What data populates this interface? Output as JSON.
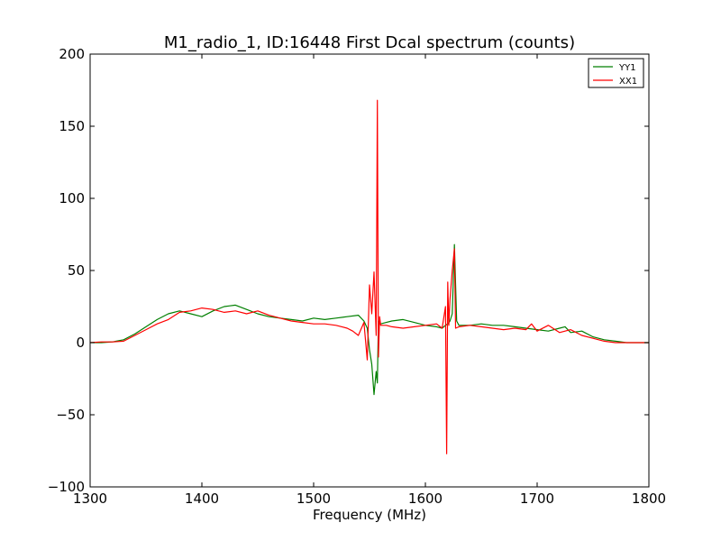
{
  "chart_data": {
    "type": "line",
    "title": "M1_radio_1, ID:16448 First Dcal spectrum (counts)",
    "xlabel": "Frequency (MHz)",
    "ylabel": "",
    "xlim": [
      1300,
      1800
    ],
    "ylim": [
      -100,
      200
    ],
    "xticks": [
      "1300",
      "1400",
      "1500",
      "1600",
      "1700",
      "1800"
    ],
    "yticks": [
      "−100",
      "−50",
      "0",
      "50",
      "100",
      "150",
      "200"
    ],
    "grid": false,
    "legend_position": "top-right",
    "series": [
      {
        "name": "YY1",
        "color": "#007f00",
        "x": [
          1300,
          1310,
          1320,
          1330,
          1340,
          1350,
          1360,
          1370,
          1380,
          1390,
          1400,
          1410,
          1420,
          1430,
          1440,
          1450,
          1460,
          1470,
          1480,
          1490,
          1500,
          1510,
          1520,
          1530,
          1540,
          1545,
          1548,
          1550,
          1552,
          1554,
          1556,
          1557,
          1558,
          1560,
          1565,
          1570,
          1580,
          1590,
          1600,
          1610,
          1615,
          1618,
          1620,
          1622,
          1624,
          1626,
          1628,
          1630,
          1640,
          1650,
          1660,
          1670,
          1680,
          1690,
          1700,
          1710,
          1720,
          1725,
          1730,
          1740,
          1750,
          1760,
          1770,
          1780,
          1790,
          1800
        ],
        "y": [
          0,
          0,
          0.5,
          2,
          6,
          11,
          16,
          20,
          22,
          20,
          18,
          22,
          25,
          26,
          23,
          20,
          18,
          17,
          16,
          15,
          17,
          16,
          17,
          18,
          19,
          15,
          10,
          -5,
          -15,
          -36,
          -20,
          -28,
          15,
          13,
          14,
          15,
          16,
          14,
          12,
          11,
          10,
          12,
          13,
          15,
          20,
          68,
          15,
          12,
          12,
          13,
          12,
          12,
          11,
          10,
          9,
          8,
          10,
          11,
          7,
          8,
          4,
          2,
          1,
          0,
          0,
          0
        ]
      },
      {
        "name": "XX1",
        "color": "#ff0000",
        "x": [
          1300,
          1310,
          1320,
          1330,
          1340,
          1350,
          1360,
          1370,
          1380,
          1390,
          1400,
          1410,
          1420,
          1430,
          1440,
          1450,
          1460,
          1470,
          1480,
          1490,
          1500,
          1510,
          1520,
          1530,
          1535,
          1540,
          1545,
          1548,
          1550,
          1552,
          1554,
          1556,
          1557,
          1558,
          1559,
          1560,
          1565,
          1570,
          1580,
          1590,
          1600,
          1610,
          1615,
          1618,
          1619,
          1620,
          1621,
          1622,
          1624,
          1626,
          1627,
          1630,
          1640,
          1650,
          1660,
          1670,
          1680,
          1690,
          1695,
          1700,
          1710,
          1720,
          1730,
          1740,
          1750,
          1760,
          1770,
          1780,
          1790,
          1800
        ],
        "y": [
          0,
          0.5,
          0.5,
          1,
          5,
          9,
          13,
          16,
          21,
          22,
          24,
          23,
          21,
          22,
          20,
          22,
          19,
          17,
          15,
          14,
          13,
          13,
          12,
          10,
          8,
          5,
          14,
          -12,
          40,
          20,
          49,
          5,
          168,
          -10,
          18,
          12,
          12,
          11,
          10,
          11,
          12,
          13,
          10,
          25,
          -77,
          42,
          12,
          30,
          50,
          65,
          10,
          11,
          12,
          11,
          10,
          9,
          10,
          9,
          13,
          8,
          12,
          7,
          9,
          5,
          3,
          1,
          0,
          0,
          0,
          0
        ]
      }
    ]
  }
}
